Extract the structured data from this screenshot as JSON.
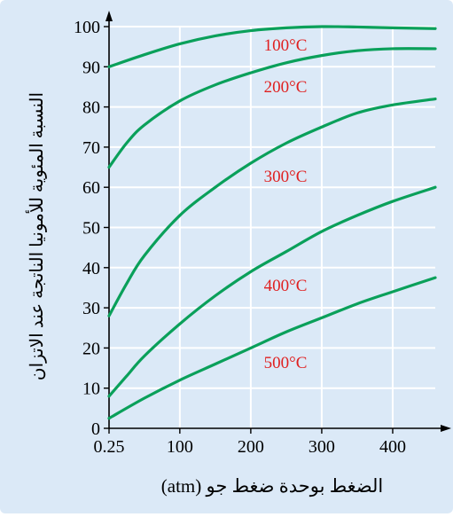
{
  "chart_data": {
    "type": "line",
    "title": "",
    "xlabel": "الضغط بوحدة ضغط جو (atm)",
    "ylabel": "النسبة المئوية للأمونيا الناتجة عند الاتزان",
    "xlim": [
      0.25,
      460
    ],
    "ylim": [
      0,
      100
    ],
    "x_ticks": [
      0.25,
      100,
      200,
      300,
      400
    ],
    "x_tick_labels": [
      "0.25",
      "100",
      "200",
      "300",
      "400"
    ],
    "y_ticks": [
      0,
      10,
      20,
      30,
      40,
      50,
      60,
      70,
      80,
      90,
      100
    ],
    "y_tick_labels": [
      "0",
      "10",
      "20",
      "30",
      "40",
      "50",
      "60",
      "70",
      "80",
      "90",
      "100"
    ],
    "grid": true,
    "colors": {
      "background": "#dbe9f7",
      "curve": "#0aa05a",
      "label": "#e02020",
      "grid": "#ffffff",
      "axis": "#000000"
    },
    "series": [
      {
        "name": "100°C",
        "x": [
          0.25,
          50,
          100,
          150,
          200,
          250,
          300,
          350,
          400,
          460
        ],
        "y": [
          90,
          93,
          95.7,
          97.7,
          99,
          99.7,
          100,
          99.9,
          99.7,
          99.5
        ]
      },
      {
        "name": "200°C",
        "x": [
          0.25,
          25,
          50,
          100,
          150,
          200,
          250,
          300,
          350,
          400,
          460
        ],
        "y": [
          65,
          71,
          75.5,
          81.5,
          85.5,
          88.5,
          91,
          92.8,
          94,
          94.5,
          94.5
        ]
      },
      {
        "name": "300°C",
        "x": [
          0.25,
          25,
          50,
          100,
          150,
          200,
          250,
          300,
          350,
          400,
          460
        ],
        "y": [
          28,
          36,
          43,
          53,
          60,
          66,
          71,
          75,
          78.5,
          80.5,
          82
        ]
      },
      {
        "name": "400°C",
        "x": [
          0.25,
          25,
          50,
          100,
          150,
          200,
          250,
          300,
          350,
          400,
          460
        ],
        "y": [
          8,
          13,
          18,
          26,
          33,
          39,
          44,
          49,
          53,
          56.5,
          60
        ]
      },
      {
        "name": "500°C",
        "x": [
          0.25,
          50,
          100,
          150,
          200,
          250,
          300,
          350,
          400,
          460
        ],
        "y": [
          2.5,
          7.5,
          12,
          16,
          20,
          24,
          27.5,
          31,
          34,
          37.5
        ]
      }
    ]
  }
}
